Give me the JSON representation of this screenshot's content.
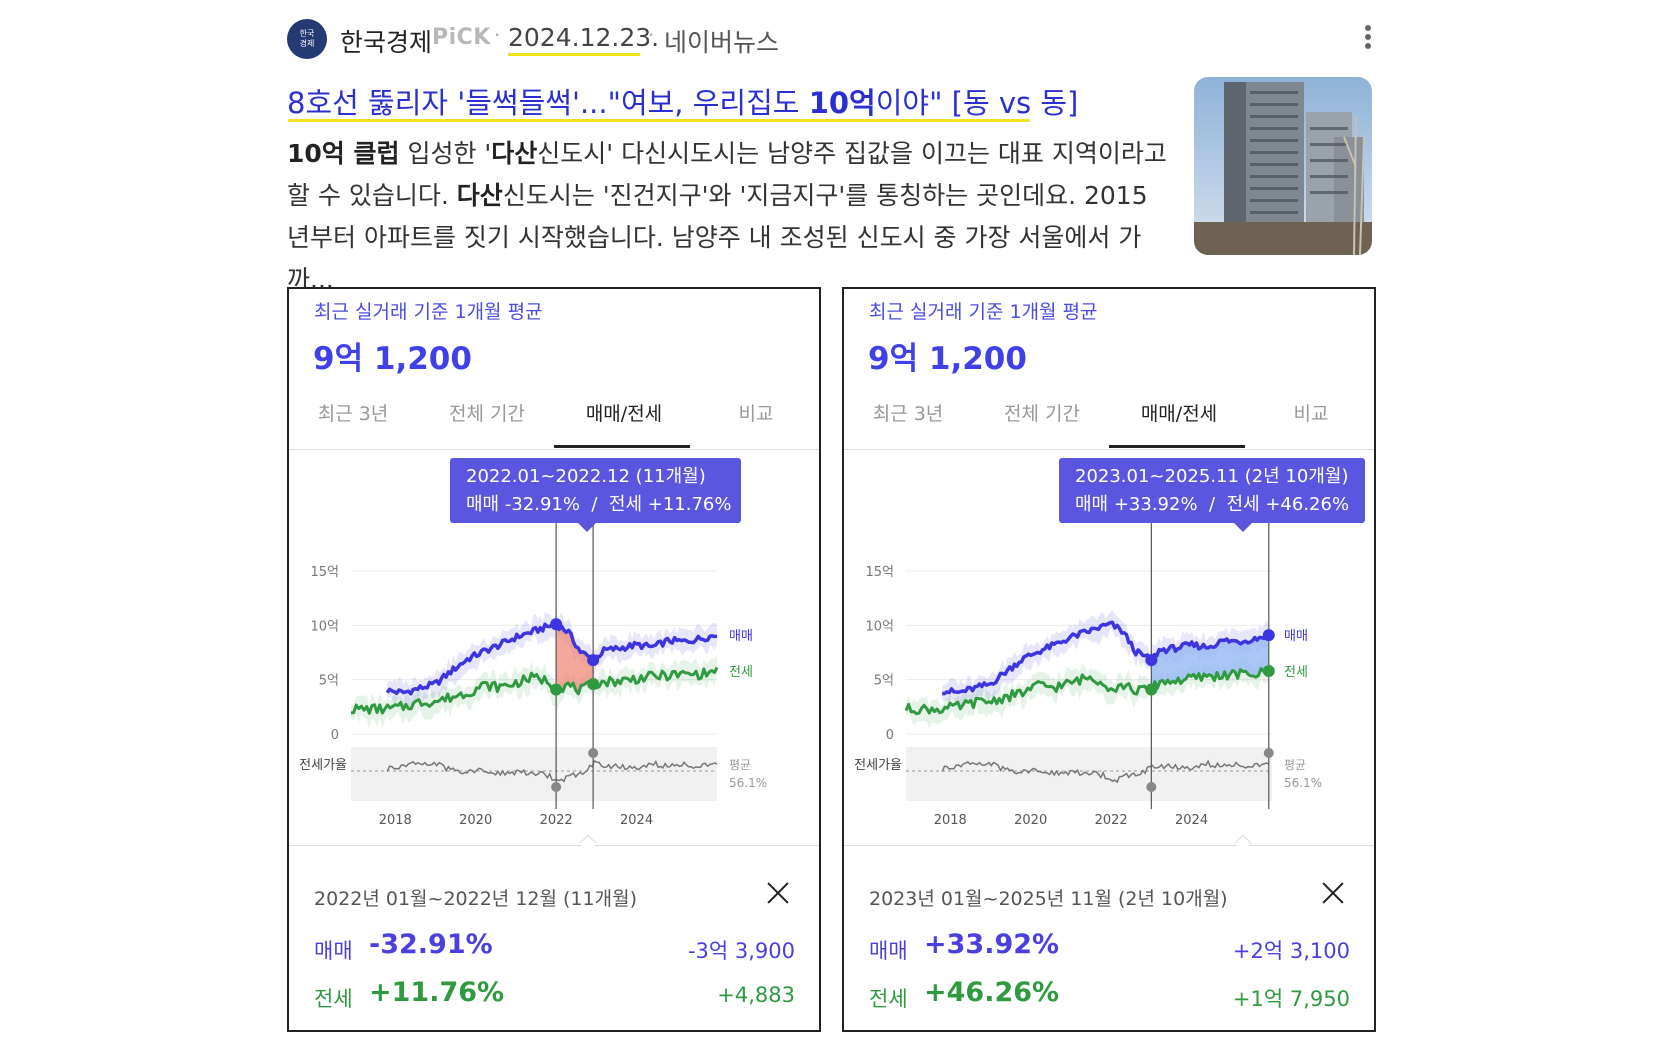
{
  "header": {
    "logo_text": "한국\n경제",
    "press": "한국경제",
    "pick": "PiCK",
    "date": "2024.12.23.",
    "source": "네이버뉴스"
  },
  "headline": {
    "pre": "8호선 뚫리자 '들썩들썩'...\"여보, 우리집도 ",
    "bold": "10억",
    "post": "이야\" [동 vs 동]"
  },
  "snippet": {
    "p1_bold": "10억 클럽",
    "p1": " 입성한 '",
    "p2_bold": "다산",
    "p2": "신도시' 다신시도시는 남양주 집값을 이끄는 대표 지역이라고 할 수 있습니다. ",
    "p3_bold": "다산",
    "p3": "신도시는 '진건지구'와 '지금지구'를 통칭하는 곳인데요. 2015년부터 아파트를 짓기 시작했습니다. 남양주 내 조성된 신도시 중 가장 서울에서 가까..."
  },
  "colors": {
    "sale": "#3d35e0",
    "jeonse": "#2f9a3f",
    "accent": "#5b56e0",
    "ratio": "#777777"
  },
  "cards": [
    {
      "avg_label": "최근 실거래 기준 1개월 평균",
      "avg_price": "9억 1,200",
      "tabs": [
        "최근 3년",
        "전체 기간",
        "매매/전세",
        "비교"
      ],
      "active_tab": 2,
      "tooltip_line1": "2022.01~2022.12 (11개월)",
      "tooltip_line2": "매매 -32.91%  /  전세 +11.76%",
      "summary_period": "2022년 01월~2022년 12월 (11개월)",
      "sale_label": "매매",
      "sale_pct": "-32.91%",
      "sale_amount": "-3억 3,900",
      "jeonse_label": "전세",
      "jeonse_pct": "+11.76%",
      "jeonse_amount": "+4,883"
    },
    {
      "avg_label": "최근 실거래 기준 1개월 평균",
      "avg_price": "9억 1,200",
      "tabs": [
        "최근 3년",
        "전체 기간",
        "매매/전세",
        "비교"
      ],
      "active_tab": 2,
      "tooltip_line1": "2023.01~2025.11 (2년 10개월)",
      "tooltip_line2": "매매 +33.92%  /  전세 +46.26%",
      "summary_period": "2023년 01월~2025년 11월 (2년 10개월)",
      "sale_label": "매매",
      "sale_pct": "+33.92%",
      "sale_amount": "+2억 3,100",
      "jeonse_label": "전세",
      "jeonse_pct": "+46.26%",
      "jeonse_amount": "+1억 7,950"
    }
  ],
  "chart_data": [
    {
      "type": "line",
      "y_ticks": [
        "15억",
        "10억",
        "5억",
        "0"
      ],
      "ylim": [
        0,
        15
      ],
      "x_ticks": [
        "2018",
        "2020",
        "2022",
        "2024"
      ],
      "xlim": [
        2016.9,
        2026.0
      ],
      "series_labels": [
        "매매",
        "전세"
      ],
      "ratio_label": "전세가율",
      "avg_label": "평균",
      "avg_value": "56.1%",
      "highlight": {
        "start": 2022.0,
        "end": 2022.92,
        "color": "#f08a7a"
      },
      "series": [
        {
          "name": "매매",
          "x": [
            2017.8,
            2018.2,
            2018.6,
            2019.0,
            2019.4,
            2019.8,
            2020.2,
            2020.6,
            2021.0,
            2021.4,
            2021.8,
            2022.0,
            2022.3,
            2022.6,
            2022.92,
            2023.2,
            2023.6,
            2024.0,
            2024.4,
            2024.8,
            2025.2,
            2025.6,
            2026.0
          ],
          "values": [
            4.0,
            3.8,
            4.2,
            4.6,
            5.8,
            6.9,
            7.6,
            8.2,
            8.9,
            9.4,
            9.9,
            10.1,
            9.4,
            7.6,
            6.8,
            7.7,
            7.9,
            8.2,
            8.0,
            8.6,
            8.5,
            8.8,
            9.1
          ]
        },
        {
          "name": "전세",
          "x": [
            2016.9,
            2017.4,
            2017.8,
            2018.2,
            2018.6,
            2019.0,
            2019.4,
            2019.8,
            2020.2,
            2020.6,
            2021.0,
            2021.4,
            2021.8,
            2022.0,
            2022.3,
            2022.6,
            2022.92,
            2023.2,
            2023.6,
            2024.0,
            2024.4,
            2024.8,
            2025.2,
            2025.6,
            2026.0
          ],
          "values": [
            2.3,
            2.3,
            2.3,
            2.5,
            2.9,
            3.0,
            3.4,
            3.8,
            4.5,
            4.3,
            4.7,
            5.2,
            4.9,
            4.1,
            4.5,
            4.0,
            4.6,
            4.8,
            4.9,
            5.1,
            5.3,
            5.4,
            5.5,
            5.5,
            5.8
          ]
        }
      ]
    },
    {
      "type": "line",
      "y_ticks": [
        "15억",
        "10억",
        "5억",
        "0"
      ],
      "ylim": [
        0,
        15
      ],
      "x_ticks": [
        "2018",
        "2020",
        "2022",
        "2024"
      ],
      "xlim": [
        2016.9,
        2026.0
      ],
      "series_labels": [
        "매매",
        "전세"
      ],
      "ratio_label": "전세가율",
      "avg_label": "평균",
      "avg_value": "56.1%",
      "highlight": {
        "start": 2023.0,
        "end": 2025.92,
        "color": "#8fb4f4"
      },
      "series": [
        {
          "name": "매매",
          "x": [
            2017.8,
            2018.2,
            2018.6,
            2019.0,
            2019.4,
            2019.8,
            2020.2,
            2020.6,
            2021.0,
            2021.4,
            2021.8,
            2022.0,
            2022.3,
            2022.6,
            2023.0,
            2023.2,
            2023.6,
            2024.0,
            2024.4,
            2024.8,
            2025.2,
            2025.6,
            2025.92
          ],
          "values": [
            4.0,
            3.8,
            4.2,
            4.6,
            5.8,
            6.9,
            7.6,
            8.2,
            8.9,
            9.4,
            9.9,
            10.1,
            9.4,
            7.6,
            6.8,
            7.7,
            7.9,
            8.2,
            8.0,
            8.6,
            8.5,
            8.8,
            9.1
          ]
        },
        {
          "name": "전세",
          "x": [
            2016.9,
            2017.4,
            2017.8,
            2018.2,
            2018.6,
            2019.0,
            2019.4,
            2019.8,
            2020.2,
            2020.6,
            2021.0,
            2021.4,
            2021.8,
            2022.0,
            2022.3,
            2022.6,
            2023.0,
            2023.2,
            2023.6,
            2024.0,
            2024.4,
            2024.8,
            2025.2,
            2025.6,
            2025.92
          ],
          "values": [
            2.3,
            2.3,
            2.3,
            2.5,
            2.9,
            3.0,
            3.4,
            3.8,
            4.5,
            4.3,
            4.7,
            5.2,
            4.9,
            4.1,
            4.5,
            4.0,
            4.1,
            4.8,
            4.9,
            5.1,
            5.3,
            5.4,
            5.5,
            5.5,
            5.8
          ]
        }
      ]
    }
  ]
}
